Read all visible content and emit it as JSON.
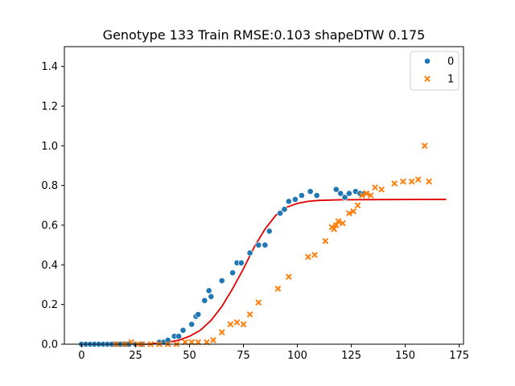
{
  "chart_data": {
    "type": "scatter",
    "title": "Genotype 133 Train RMSE:0.103 shapeDTW 0.175",
    "xlabel": "",
    "ylabel": "",
    "xlim": [
      -8,
      177
    ],
    "ylim": [
      0,
      1.5
    ],
    "xticks": [
      0,
      25,
      50,
      75,
      100,
      125,
      150,
      175
    ],
    "yticks": [
      0.0,
      0.2,
      0.4,
      0.6,
      0.8,
      1.0,
      1.2,
      1.4
    ],
    "xtick_labels": [
      "0",
      "25",
      "50",
      "75",
      "100",
      "125",
      "150",
      "175"
    ],
    "ytick_labels": [
      "0.0",
      "0.2",
      "0.4",
      "0.6",
      "0.8",
      "1.0",
      "1.2",
      "1.4"
    ],
    "grid": false,
    "legend_position": "top-right",
    "series": [
      {
        "name": "0",
        "marker": "circle",
        "color": "#1f77b4",
        "points": [
          [
            0,
            0.0
          ],
          [
            2,
            0.0
          ],
          [
            4,
            0.0
          ],
          [
            6,
            0.0
          ],
          [
            8,
            0.0
          ],
          [
            10,
            0.0
          ],
          [
            12,
            0.0
          ],
          [
            14,
            0.0
          ],
          [
            16,
            0.0
          ],
          [
            18,
            0.0
          ],
          [
            20,
            0.0
          ],
          [
            22,
            0.0
          ],
          [
            25,
            0.0
          ],
          [
            28,
            0.0
          ],
          [
            36,
            0.01
          ],
          [
            38,
            0.01
          ],
          [
            40,
            0.02
          ],
          [
            43,
            0.04
          ],
          [
            45,
            0.04
          ],
          [
            47,
            0.07
          ],
          [
            51,
            0.1
          ],
          [
            53,
            0.14
          ],
          [
            54,
            0.15
          ],
          [
            57,
            0.22
          ],
          [
            59,
            0.27
          ],
          [
            60,
            0.24
          ],
          [
            65,
            0.32
          ],
          [
            70,
            0.36
          ],
          [
            72,
            0.41
          ],
          [
            74,
            0.41
          ],
          [
            78,
            0.46
          ],
          [
            82,
            0.5
          ],
          [
            85,
            0.5
          ],
          [
            87,
            0.57
          ],
          [
            92,
            0.66
          ],
          [
            94,
            0.68
          ],
          [
            96,
            0.72
          ],
          [
            99,
            0.73
          ],
          [
            102,
            0.75
          ],
          [
            106,
            0.77
          ],
          [
            109,
            0.75
          ],
          [
            118,
            0.78
          ],
          [
            120,
            0.76
          ],
          [
            122,
            0.74
          ],
          [
            124,
            0.76
          ],
          [
            127,
            0.77
          ],
          [
            129,
            0.76
          ],
          [
            131,
            0.76
          ]
        ]
      },
      {
        "name": "1",
        "marker": "x",
        "color": "#ff7f0e",
        "points": [
          [
            16,
            0.0
          ],
          [
            20,
            0.0
          ],
          [
            23,
            0.01
          ],
          [
            26,
            0.0
          ],
          [
            28,
            0.0
          ],
          [
            32,
            0.0
          ],
          [
            36,
            0.0
          ],
          [
            40,
            0.0
          ],
          [
            44,
            0.0
          ],
          [
            48,
            0.01
          ],
          [
            51,
            0.01
          ],
          [
            54,
            0.01
          ],
          [
            58,
            0.01
          ],
          [
            61,
            0.02
          ],
          [
            65,
            0.06
          ],
          [
            69,
            0.1
          ],
          [
            72,
            0.11
          ],
          [
            75,
            0.1
          ],
          [
            78,
            0.15
          ],
          [
            82,
            0.21
          ],
          [
            91,
            0.28
          ],
          [
            96,
            0.34
          ],
          [
            105,
            0.44
          ],
          [
            108,
            0.45
          ],
          [
            113,
            0.52
          ],
          [
            116,
            0.59
          ],
          [
            117,
            0.58
          ],
          [
            118,
            0.6
          ],
          [
            119,
            0.62
          ],
          [
            121,
            0.61
          ],
          [
            124,
            0.66
          ],
          [
            126,
            0.67
          ],
          [
            128,
            0.7
          ],
          [
            130,
            0.75
          ],
          [
            132,
            0.76
          ],
          [
            134,
            0.75
          ],
          [
            136,
            0.79
          ],
          [
            139,
            0.78
          ],
          [
            145,
            0.81
          ],
          [
            149,
            0.82
          ],
          [
            153,
            0.82
          ],
          [
            156,
            0.83
          ],
          [
            159,
            1.0
          ],
          [
            161,
            0.82
          ]
        ]
      }
    ],
    "fit_line": {
      "type": "line",
      "color": "#e00000",
      "x_range": [
        0,
        169
      ],
      "points": [
        [
          0,
          0.0
        ],
        [
          20,
          0.0
        ],
        [
          30,
          0.0
        ],
        [
          40,
          0.01
        ],
        [
          45,
          0.02
        ],
        [
          50,
          0.04
        ],
        [
          55,
          0.07
        ],
        [
          60,
          0.12
        ],
        [
          65,
          0.19
        ],
        [
          70,
          0.28
        ],
        [
          75,
          0.38
        ],
        [
          80,
          0.49
        ],
        [
          85,
          0.58
        ],
        [
          90,
          0.65
        ],
        [
          95,
          0.69
        ],
        [
          100,
          0.71
        ],
        [
          105,
          0.72
        ],
        [
          110,
          0.725
        ],
        [
          120,
          0.728
        ],
        [
          140,
          0.729
        ],
        [
          169,
          0.73
        ]
      ]
    }
  }
}
